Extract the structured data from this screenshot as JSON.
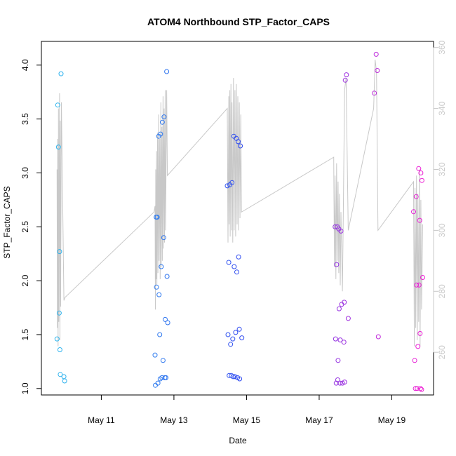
{
  "chart_data": {
    "type": "scatter",
    "title": "ATOM4 Northbound STP_Factor_CAPS",
    "xlabel": "Date",
    "ylabel": "STP_Factor_CAPS",
    "x_ticks": [
      "May 11",
      "May 13",
      "May 15",
      "May 17",
      "May 19"
    ],
    "x_tick_days": [
      11,
      13,
      15,
      17,
      19
    ],
    "xlim": [
      9.35,
      20.15
    ],
    "ylim": [
      0.94,
      4.22
    ],
    "y_ticks": [
      1.0,
      1.5,
      2.0,
      2.5,
      3.0,
      3.5,
      4.0
    ],
    "y_tick_labels": [
      "1.0",
      "1.5",
      "2.0",
      "2.5",
      "3.0",
      "3.5",
      "4.0"
    ],
    "y2lim": [
      246,
      362
    ],
    "y2_ticks": [
      260,
      280,
      300,
      320,
      340,
      360
    ],
    "y2_tick_labels": [
      "260",
      "280",
      "300",
      "320",
      "340",
      "360"
    ],
    "grid": false,
    "colors": {
      "points_start": "#2eb5ee",
      "points_mid": "#2f4bf0",
      "points_end": "#ee1ed4",
      "line": "#c8c8c8",
      "axis": "#000000",
      "right_axis": "#c8c8c8"
    },
    "points": [
      {
        "day": 9.78,
        "value": 1.46
      },
      {
        "day": 9.8,
        "value": 3.63
      },
      {
        "day": 9.82,
        "value": 3.24
      },
      {
        "day": 9.84,
        "value": 1.7
      },
      {
        "day": 9.85,
        "value": 2.27
      },
      {
        "day": 9.86,
        "value": 1.36
      },
      {
        "day": 9.87,
        "value": 1.13
      },
      {
        "day": 9.89,
        "value": 3.92
      },
      {
        "day": 9.97,
        "value": 1.11
      },
      {
        "day": 9.99,
        "value": 1.07
      },
      {
        "day": 12.48,
        "value": 1.31
      },
      {
        "day": 12.49,
        "value": 1.03
      },
      {
        "day": 12.51,
        "value": 2.59
      },
      {
        "day": 12.52,
        "value": 1.94
      },
      {
        "day": 12.54,
        "value": 2.59
      },
      {
        "day": 12.56,
        "value": 1.05
      },
      {
        "day": 12.58,
        "value": 3.34
      },
      {
        "day": 12.59,
        "value": 1.87
      },
      {
        "day": 12.61,
        "value": 1.5
      },
      {
        "day": 12.62,
        "value": 1.09
      },
      {
        "day": 12.63,
        "value": 3.36
      },
      {
        "day": 12.65,
        "value": 2.13
      },
      {
        "day": 12.67,
        "value": 1.1
      },
      {
        "day": 12.68,
        "value": 3.47
      },
      {
        "day": 12.7,
        "value": 1.26
      },
      {
        "day": 12.72,
        "value": 2.4
      },
      {
        "day": 12.73,
        "value": 3.52
      },
      {
        "day": 12.75,
        "value": 1.1
      },
      {
        "day": 12.76,
        "value": 1.64
      },
      {
        "day": 12.78,
        "value": 1.1
      },
      {
        "day": 12.8,
        "value": 3.94
      },
      {
        "day": 12.81,
        "value": 2.04
      },
      {
        "day": 12.83,
        "value": 1.61
      },
      {
        "day": 14.47,
        "value": 2.88
      },
      {
        "day": 14.49,
        "value": 1.5
      },
      {
        "day": 14.51,
        "value": 2.17
      },
      {
        "day": 14.52,
        "value": 1.12
      },
      {
        "day": 14.54,
        "value": 2.89
      },
      {
        "day": 14.56,
        "value": 1.41
      },
      {
        "day": 14.58,
        "value": 1.12
      },
      {
        "day": 14.6,
        "value": 2.91
      },
      {
        "day": 14.62,
        "value": 1.46
      },
      {
        "day": 14.63,
        "value": 1.11
      },
      {
        "day": 14.65,
        "value": 3.34
      },
      {
        "day": 14.66,
        "value": 2.13
      },
      {
        "day": 14.68,
        "value": 1.11
      },
      {
        "day": 14.7,
        "value": 1.52
      },
      {
        "day": 14.72,
        "value": 3.32
      },
      {
        "day": 14.73,
        "value": 2.08
      },
      {
        "day": 14.75,
        "value": 1.1
      },
      {
        "day": 14.77,
        "value": 3.29
      },
      {
        "day": 14.78,
        "value": 2.22
      },
      {
        "day": 14.8,
        "value": 1.55
      },
      {
        "day": 14.81,
        "value": 1.09
      },
      {
        "day": 14.83,
        "value": 3.25
      },
      {
        "day": 14.87,
        "value": 1.47
      },
      {
        "day": 17.44,
        "value": 2.5
      },
      {
        "day": 17.45,
        "value": 1.46
      },
      {
        "day": 17.47,
        "value": 1.05
      },
      {
        "day": 17.48,
        "value": 2.15
      },
      {
        "day": 17.5,
        "value": 2.5
      },
      {
        "day": 17.51,
        "value": 1.08
      },
      {
        "day": 17.52,
        "value": 1.26
      },
      {
        "day": 17.54,
        "value": 2.48
      },
      {
        "day": 17.55,
        "value": 1.74
      },
      {
        "day": 17.57,
        "value": 1.05
      },
      {
        "day": 17.58,
        "value": 1.45
      },
      {
        "day": 17.6,
        "value": 2.46
      },
      {
        "day": 17.62,
        "value": 1.78
      },
      {
        "day": 17.64,
        "value": 1.05
      },
      {
        "day": 17.68,
        "value": 1.43
      },
      {
        "day": 17.69,
        "value": 1.8
      },
      {
        "day": 17.7,
        "value": 1.06
      },
      {
        "day": 17.72,
        "value": 3.86
      },
      {
        "day": 17.75,
        "value": 3.91
      },
      {
        "day": 17.8,
        "value": 1.65
      },
      {
        "day": 18.52,
        "value": 3.74
      },
      {
        "day": 18.57,
        "value": 4.1
      },
      {
        "day": 18.6,
        "value": 3.95
      },
      {
        "day": 18.63,
        "value": 1.48
      },
      {
        "day": 19.6,
        "value": 2.64
      },
      {
        "day": 19.63,
        "value": 1.26
      },
      {
        "day": 19.65,
        "value": 1.0
      },
      {
        "day": 19.67,
        "value": 2.78
      },
      {
        "day": 19.68,
        "value": 1.96
      },
      {
        "day": 19.7,
        "value": 1.0
      },
      {
        "day": 19.72,
        "value": 1.39
      },
      {
        "day": 19.74,
        "value": 3.04
      },
      {
        "day": 19.75,
        "value": 1.96
      },
      {
        "day": 19.77,
        "value": 2.56
      },
      {
        "day": 19.78,
        "value": 1.51
      },
      {
        "day": 19.79,
        "value": 1.0
      },
      {
        "day": 19.8,
        "value": 3.0
      },
      {
        "day": 19.82,
        "value": 0.99
      },
      {
        "day": 19.83,
        "value": 2.93
      },
      {
        "day": 19.85,
        "value": 2.03
      }
    ],
    "line_series": [
      {
        "day": 9.78,
        "value": 320
      },
      {
        "day": 9.79,
        "value": 268
      },
      {
        "day": 9.8,
        "value": 330
      },
      {
        "day": 9.81,
        "value": 262
      },
      {
        "day": 9.82,
        "value": 340
      },
      {
        "day": 9.83,
        "value": 270
      },
      {
        "day": 9.85,
        "value": 345
      },
      {
        "day": 9.86,
        "value": 264
      },
      {
        "day": 9.87,
        "value": 336
      },
      {
        "day": 9.88,
        "value": 275
      },
      {
        "day": 9.9,
        "value": 342
      },
      {
        "day": 9.97,
        "value": 277
      },
      {
        "day": 10.0,
        "value": 278
      },
      {
        "day": 12.45,
        "value": 306
      },
      {
        "day": 12.48,
        "value": 308
      },
      {
        "day": 12.49,
        "value": 274
      },
      {
        "day": 12.5,
        "value": 320
      },
      {
        "day": 12.51,
        "value": 284
      },
      {
        "day": 12.52,
        "value": 326
      },
      {
        "day": 12.53,
        "value": 282
      },
      {
        "day": 12.55,
        "value": 332
      },
      {
        "day": 12.56,
        "value": 286
      },
      {
        "day": 12.58,
        "value": 338
      },
      {
        "day": 12.59,
        "value": 290
      },
      {
        "day": 12.61,
        "value": 330
      },
      {
        "day": 12.62,
        "value": 284
      },
      {
        "day": 12.64,
        "value": 342
      },
      {
        "day": 12.65,
        "value": 288
      },
      {
        "day": 12.67,
        "value": 334
      },
      {
        "day": 12.68,
        "value": 290
      },
      {
        "day": 12.7,
        "value": 344
      },
      {
        "day": 12.71,
        "value": 294
      },
      {
        "day": 12.73,
        "value": 340
      },
      {
        "day": 12.74,
        "value": 296
      },
      {
        "day": 12.76,
        "value": 346
      },
      {
        "day": 12.77,
        "value": 300
      },
      {
        "day": 12.8,
        "value": 346
      },
      {
        "day": 12.82,
        "value": 318
      },
      {
        "day": 14.47,
        "value": 340
      },
      {
        "day": 14.49,
        "value": 296
      },
      {
        "day": 14.51,
        "value": 344
      },
      {
        "day": 14.52,
        "value": 302
      },
      {
        "day": 14.54,
        "value": 346
      },
      {
        "day": 14.55,
        "value": 298
      },
      {
        "day": 14.57,
        "value": 348
      },
      {
        "day": 14.58,
        "value": 300
      },
      {
        "day": 14.6,
        "value": 342
      },
      {
        "day": 14.62,
        "value": 296
      },
      {
        "day": 14.64,
        "value": 350
      },
      {
        "day": 14.66,
        "value": 300
      },
      {
        "day": 14.68,
        "value": 346
      },
      {
        "day": 14.7,
        "value": 298
      },
      {
        "day": 14.72,
        "value": 348
      },
      {
        "day": 14.74,
        "value": 302
      },
      {
        "day": 14.76,
        "value": 344
      },
      {
        "day": 14.78,
        "value": 300
      },
      {
        "day": 14.8,
        "value": 342
      },
      {
        "day": 14.82,
        "value": 304
      },
      {
        "day": 14.84,
        "value": 338
      },
      {
        "day": 14.86,
        "value": 306
      },
      {
        "day": 17.4,
        "value": 324
      },
      {
        "day": 17.42,
        "value": 288
      },
      {
        "day": 17.44,
        "value": 318
      },
      {
        "day": 17.46,
        "value": 284
      },
      {
        "day": 17.48,
        "value": 322
      },
      {
        "day": 17.5,
        "value": 290
      },
      {
        "day": 17.52,
        "value": 316
      },
      {
        "day": 17.54,
        "value": 286
      },
      {
        "day": 17.56,
        "value": 312
      },
      {
        "day": 17.58,
        "value": 282
      },
      {
        "day": 17.6,
        "value": 306
      },
      {
        "day": 17.64,
        "value": 280
      },
      {
        "day": 17.66,
        "value": 300
      },
      {
        "day": 17.7,
        "value": 346
      },
      {
        "day": 17.74,
        "value": 350
      },
      {
        "day": 17.8,
        "value": 300
      },
      {
        "day": 18.5,
        "value": 340
      },
      {
        "day": 18.54,
        "value": 356
      },
      {
        "day": 18.58,
        "value": 352
      },
      {
        "day": 18.62,
        "value": 300
      },
      {
        "day": 19.6,
        "value": 316
      },
      {
        "day": 19.62,
        "value": 262
      },
      {
        "day": 19.64,
        "value": 314
      },
      {
        "day": 19.66,
        "value": 268
      },
      {
        "day": 19.68,
        "value": 318
      },
      {
        "day": 19.7,
        "value": 264
      },
      {
        "day": 19.72,
        "value": 312
      },
      {
        "day": 19.74,
        "value": 270
      },
      {
        "day": 19.76,
        "value": 320
      },
      {
        "day": 19.78,
        "value": 262
      },
      {
        "day": 19.8,
        "value": 310
      },
      {
        "day": 19.82,
        "value": 274
      },
      {
        "day": 19.85,
        "value": 302
      }
    ]
  }
}
